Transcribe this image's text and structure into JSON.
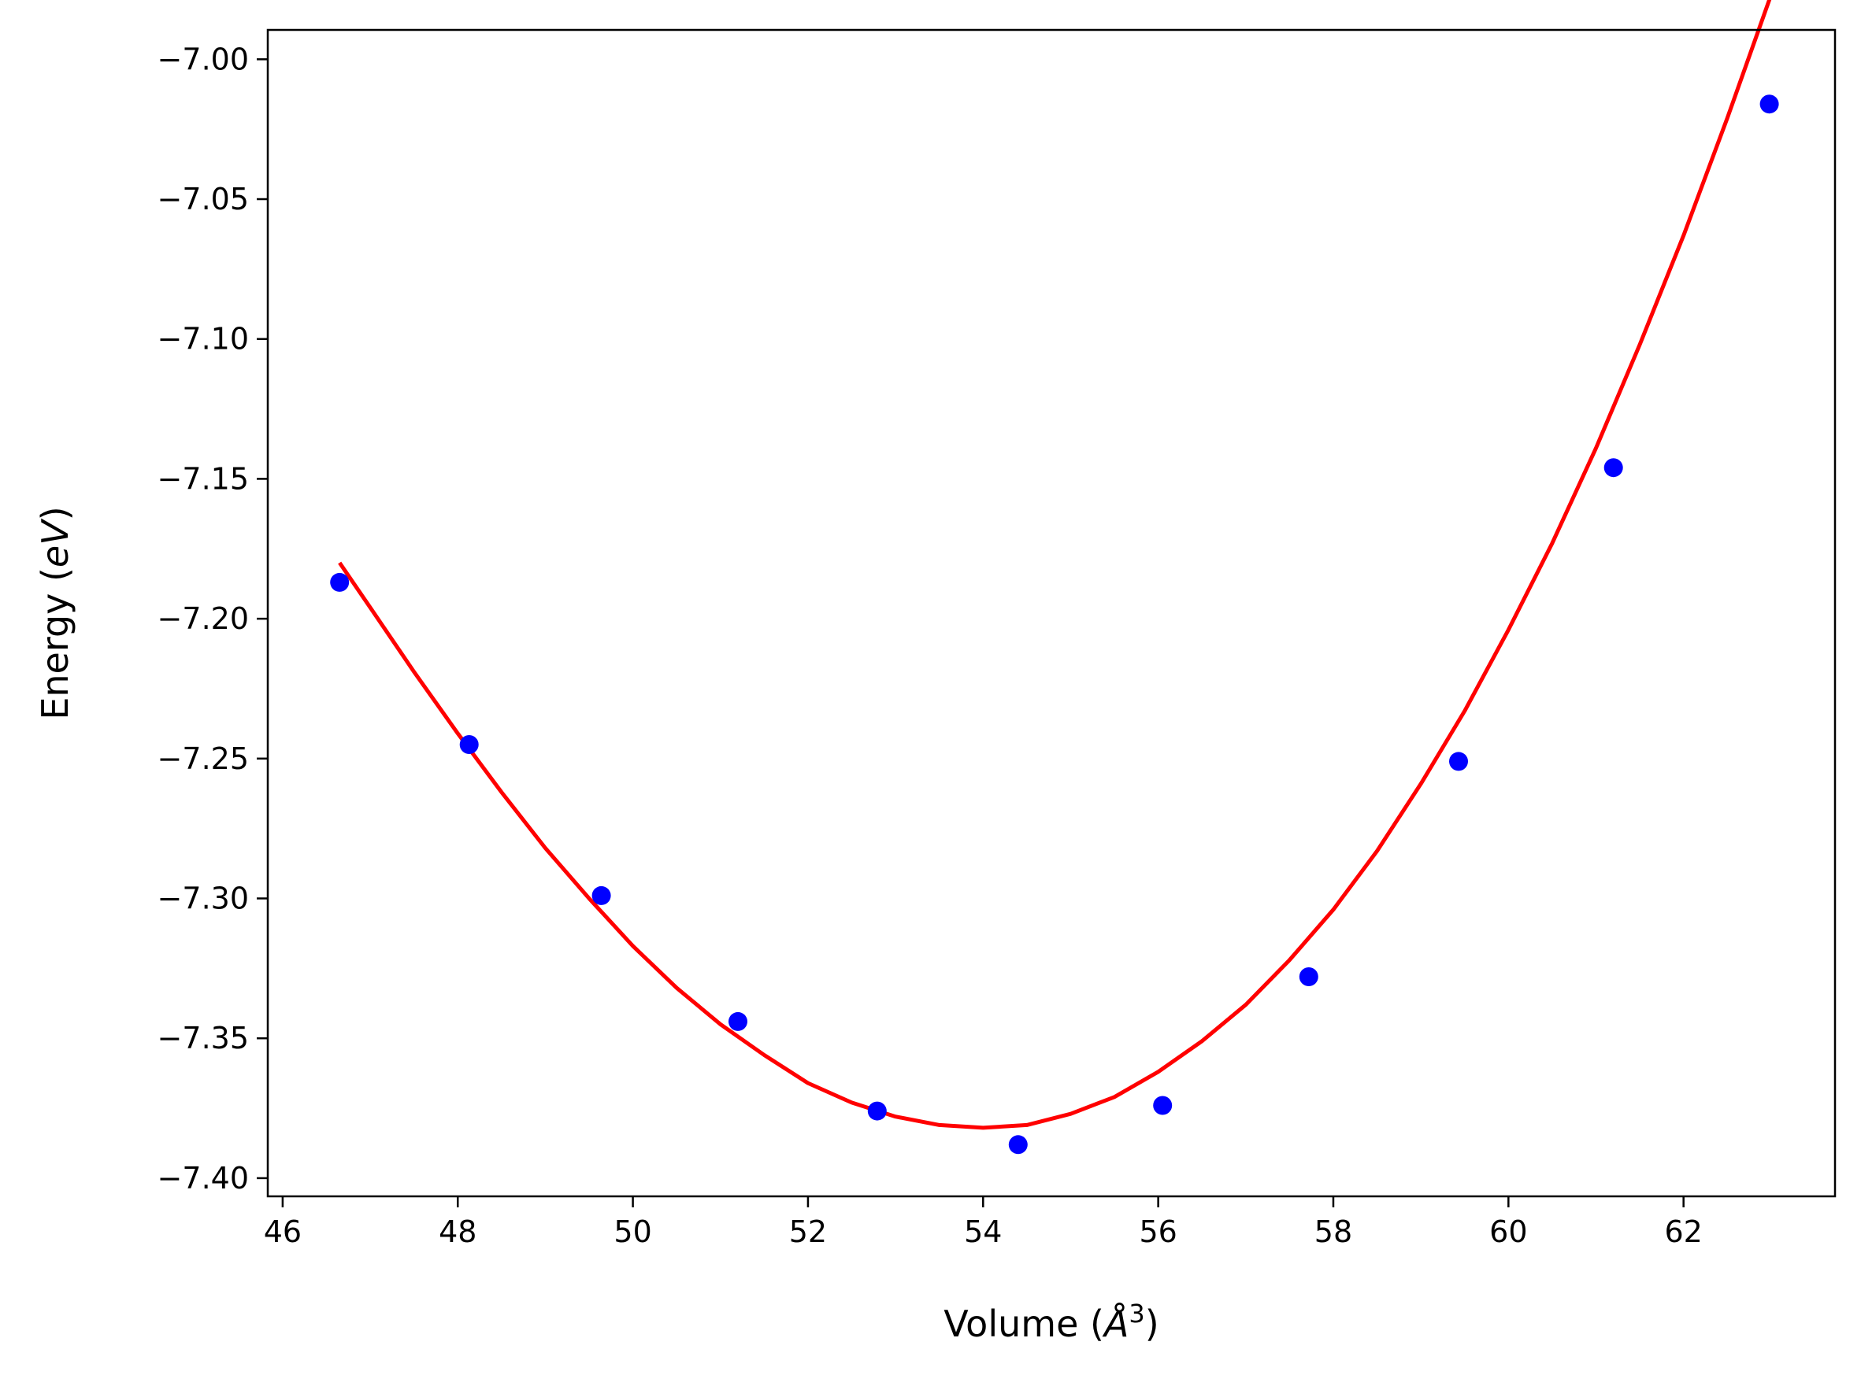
{
  "chart_data": {
    "type": "scatter",
    "title": "",
    "xlabel": {
      "prefix": "Volume (",
      "math": "Å",
      "sup": "3",
      "suffix": ")"
    },
    "ylabel": {
      "prefix": "Energy (",
      "math": "eV",
      "suffix": ")"
    },
    "xlim": [
      45.83,
      63.73
    ],
    "ylim": [
      -7.4065,
      -6.9895
    ],
    "xticks": [
      46,
      48,
      50,
      52,
      54,
      56,
      58,
      60,
      62
    ],
    "xtick_labels": [
      "46",
      "48",
      "50",
      "52",
      "54",
      "56",
      "58",
      "60",
      "62"
    ],
    "yticks": [
      -7.4,
      -7.35,
      -7.3,
      -7.25,
      -7.2,
      -7.15,
      -7.1,
      -7.05,
      -7.0
    ],
    "ytick_labels": [
      "−7.40",
      "−7.35",
      "−7.30",
      "−7.25",
      "−7.20",
      "−7.15",
      "−7.10",
      "−7.05",
      "−7.00"
    ],
    "grid": false,
    "series": [
      {
        "kind": "points",
        "color": "#0000ff",
        "x": [
          46.65,
          48.13,
          49.64,
          51.2,
          52.79,
          54.4,
          56.05,
          57.72,
          59.43,
          61.2,
          62.98
        ],
        "y": [
          -7.187,
          -7.245,
          -7.299,
          -7.344,
          -7.376,
          -7.388,
          -7.374,
          -7.328,
          -7.251,
          -7.146,
          -7.016
        ]
      },
      {
        "kind": "fit-line",
        "color": "#ff0000",
        "x": [
          46.65,
          47.0,
          47.5,
          48.0,
          48.5,
          49.0,
          49.5,
          50.0,
          50.5,
          51.0,
          51.5,
          52.0,
          52.5,
          53.0,
          53.5,
          54.0,
          54.5,
          55.0,
          55.5,
          56.0,
          56.5,
          57.0,
          57.5,
          58.0,
          58.5,
          59.0,
          59.5,
          60.0,
          60.5,
          61.0,
          61.5,
          62.0,
          62.5,
          63.0
        ],
        "y": [
          -7.18,
          -7.196,
          -7.219,
          -7.241,
          -7.262,
          -7.282,
          -7.3,
          -7.317,
          -7.332,
          -7.345,
          -7.356,
          -7.366,
          -7.373,
          -7.378,
          -7.381,
          -7.382,
          -7.381,
          -7.377,
          -7.371,
          -7.362,
          -7.351,
          -7.338,
          -7.322,
          -7.304,
          -7.283,
          -7.259,
          -7.233,
          -7.204,
          -7.173,
          -7.139,
          -7.102,
          -7.063,
          -7.021,
          -6.977
        ]
      }
    ]
  }
}
